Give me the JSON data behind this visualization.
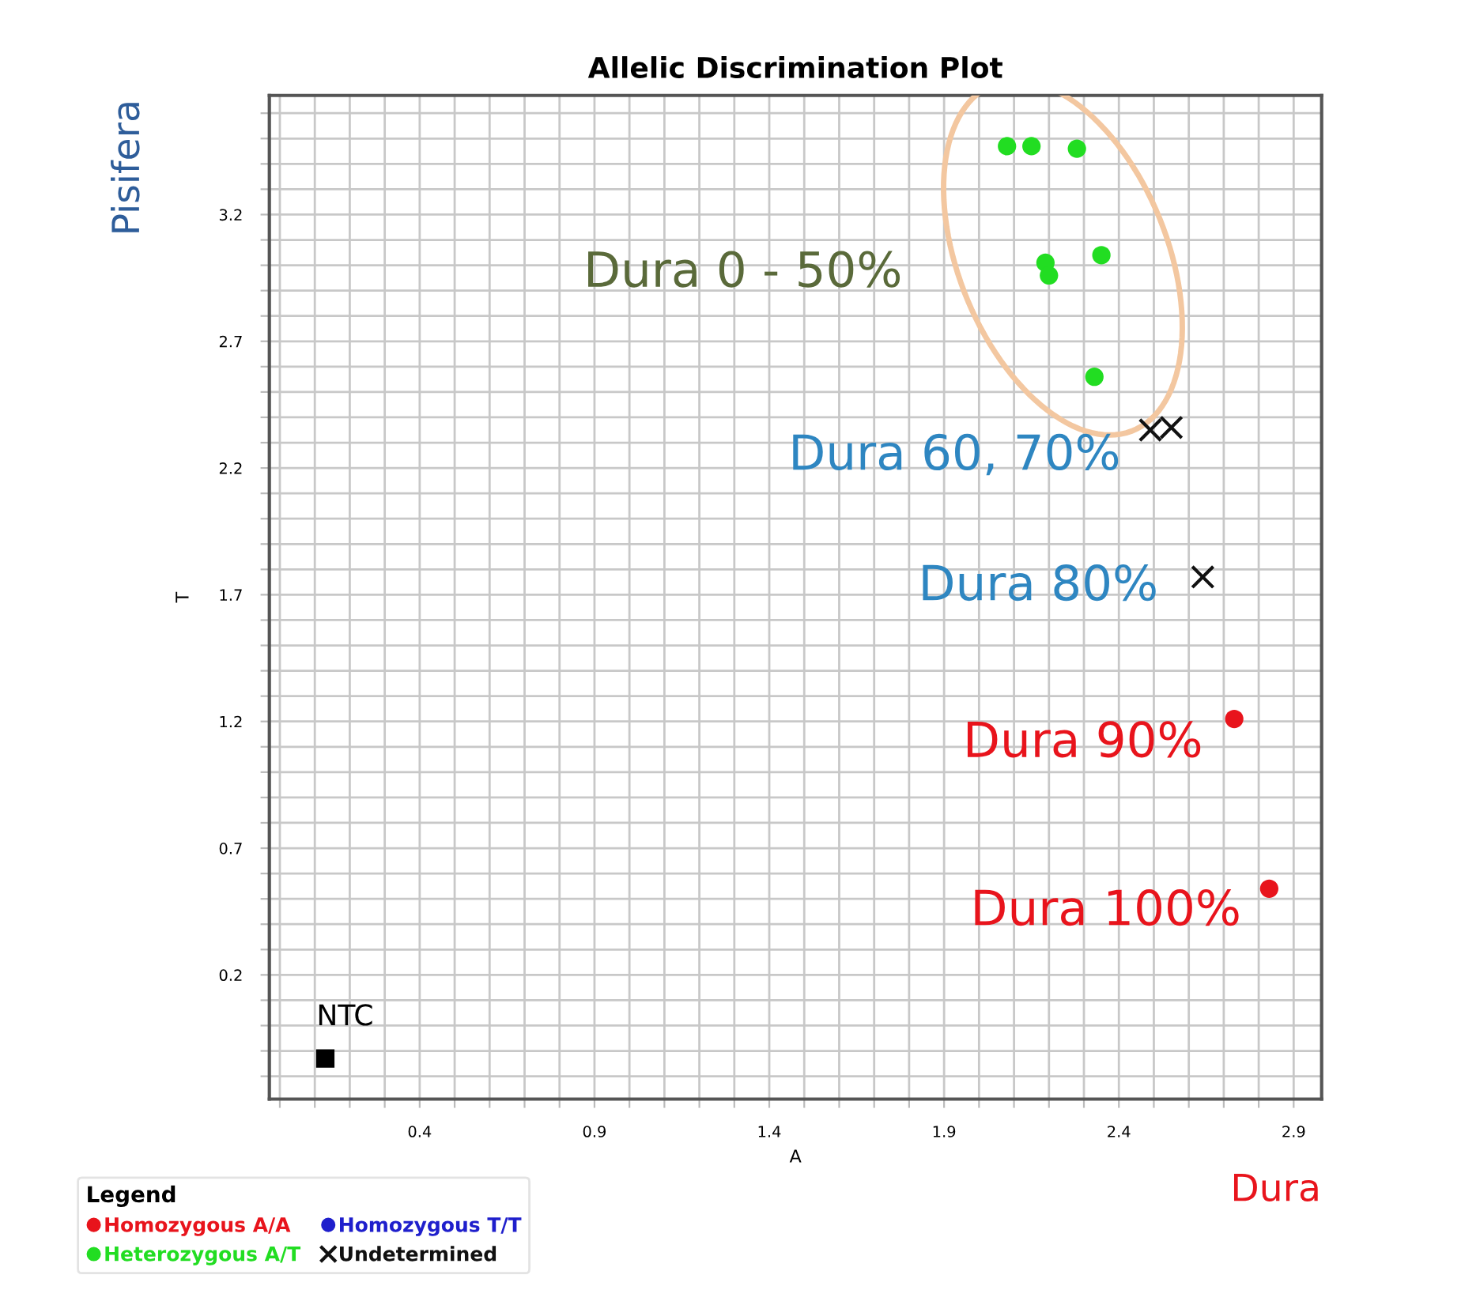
{
  "chart_data": {
    "type": "scatter",
    "title": "Allelic Discrimination Plot",
    "xlabel": "A",
    "ylabel": "T",
    "legend_title": "Legend",
    "series": [
      {
        "name": "Homozygous A/A",
        "color": "#e8141c",
        "marker": "circle",
        "x": [
          2.73,
          2.83
        ],
        "values": [
          1.21,
          0.54
        ]
      },
      {
        "name": "Homozygous T/T",
        "color": "#1f1fcc",
        "marker": "circle"
      },
      {
        "name": "Heterozygous A/T",
        "color": "#22dd22",
        "marker": "circle",
        "x": [
          2.08,
          2.15,
          2.28,
          2.19,
          2.2,
          2.35,
          2.33
        ],
        "values": [
          3.47,
          3.47,
          3.46,
          3.01,
          2.96,
          3.04,
          2.56
        ]
      },
      {
        "name": "Undetermined",
        "color": "#111111",
        "marker": "cross",
        "x": [
          2.49,
          2.55,
          2.64
        ],
        "values": [
          2.35,
          2.36,
          1.77
        ]
      },
      {
        "color": "#000000",
        "marker": "square",
        "x": [
          0.13
        ],
        "values": [
          -0.13
        ]
      }
    ],
    "annotations": [
      {
        "text": "Dura 60, 70%",
        "x": 2.49,
        "y": 2.35
      },
      {
        "text": "Dura 80%",
        "x": 2.64,
        "y": 1.77
      },
      {
        "text": "Dura 90%",
        "x": 2.73,
        "y": 1.21
      },
      {
        "text": "Dura 100%",
        "x": 2.83,
        "y": 0.54
      },
      {
        "text": "NTC",
        "x": 0.13,
        "y": -0.13
      },
      "Dura 0 - 50%",
      "Pisifera",
      "Dura"
    ],
    "xlim": [
      -0.03,
      2.98
    ],
    "ylim": [
      -0.29,
      3.67
    ],
    "xticks": [
      {
        "value": 0.0,
        "label": null
      },
      {
        "value": 0.1,
        "label": null
      },
      {
        "value": 0.2,
        "label": null
      },
      {
        "value": 0.3,
        "label": null
      },
      0.4,
      {
        "value": 0.5,
        "label": null
      },
      {
        "value": 0.6,
        "label": null
      },
      {
        "value": 0.7,
        "label": null
      },
      {
        "value": 0.8,
        "label": null
      },
      0.9,
      {
        "value": 1.0,
        "label": null
      },
      {
        "value": 1.1,
        "label": null
      },
      {
        "value": 1.2,
        "label": null
      },
      {
        "value": 1.3,
        "label": null
      },
      1.4,
      {
        "value": 1.5,
        "label": null
      },
      {
        "value": 1.6,
        "label": null
      },
      {
        "value": 1.7,
        "label": null
      },
      {
        "value": 1.8,
        "label": null
      },
      1.9,
      {
        "value": 2.0,
        "label": null
      },
      {
        "value": 2.1,
        "label": null
      },
      {
        "value": 2.2,
        "label": null
      },
      {
        "value": 2.3,
        "label": null
      },
      2.4,
      {
        "value": 2.5,
        "label": null
      },
      {
        "value": 2.6,
        "label": null
      },
      {
        "value": 2.7,
        "label": null
      },
      {
        "value": 2.8,
        "label": null
      },
      2.9
    ],
    "yticks": [
      {
        "value": -0.2,
        "label": null
      },
      {
        "value": -0.1,
        "label": null
      },
      {
        "value": 0.0,
        "label": null
      },
      {
        "value": 0.1,
        "label": null
      },
      0.2,
      {
        "value": 0.3,
        "label": null
      },
      {
        "value": 0.4,
        "label": null
      },
      {
        "value": 0.5,
        "label": null
      },
      {
        "value": 0.6,
        "label": null
      },
      0.7,
      {
        "value": 0.8,
        "label": null
      },
      {
        "value": 0.9,
        "label": null
      },
      {
        "value": 1.0,
        "label": null
      },
      {
        "value": 1.1,
        "label": null
      },
      1.2,
      {
        "value": 1.3,
        "label": null
      },
      {
        "value": 1.4,
        "label": null
      },
      {
        "value": 1.5,
        "label": null
      },
      {
        "value": 1.6,
        "label": null
      },
      1.7,
      {
        "value": 1.8,
        "label": null
      },
      {
        "value": 1.9,
        "label": null
      },
      {
        "value": 2.0,
        "label": null
      },
      {
        "value": 2.1,
        "label": null
      },
      2.2,
      {
        "value": 2.3,
        "label": null
      },
      {
        "value": 2.4,
        "label": null
      },
      {
        "value": 2.5,
        "label": null
      },
      {
        "value": 2.6,
        "label": null
      },
      2.7,
      {
        "value": 2.8,
        "label": null
      },
      {
        "value": 2.9,
        "label": null
      },
      {
        "value": 3.0,
        "label": null
      },
      {
        "value": 3.1,
        "label": null
      },
      3.2,
      {
        "value": 3.3,
        "label": null
      },
      {
        "value": 3.4,
        "label": null
      },
      {
        "value": 3.5,
        "label": null
      },
      {
        "value": 3.6,
        "label": null
      }
    ],
    "grid": true,
    "legend": "bottom"
  }
}
